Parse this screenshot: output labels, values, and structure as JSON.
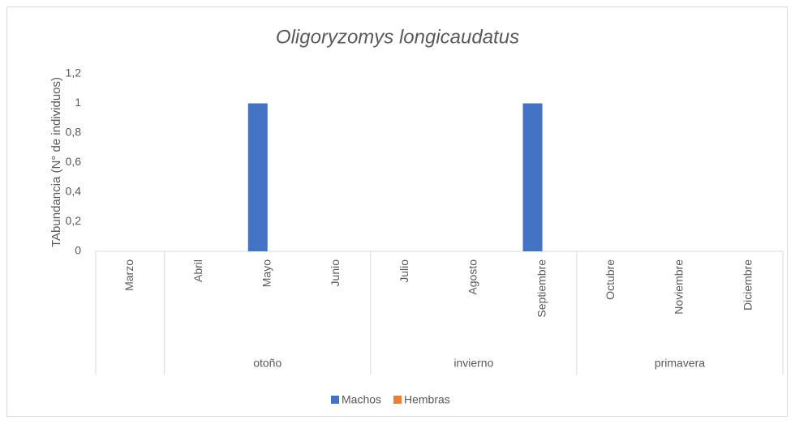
{
  "chart_data": {
    "type": "bar",
    "title": "Oligoryzomys longicaudatus",
    "ylabel": "TAbundancia (N° de individuos)",
    "categories": [
      "Marzo",
      "Abril",
      "Mayo",
      "Junio",
      "Julio",
      "Agosto",
      "Septiembre",
      "Octubre",
      "Noviembre",
      "Diciembre"
    ],
    "group_labels": [
      null,
      "otoño",
      "otoño",
      "otoño",
      "invierno",
      "invierno",
      "invierno",
      "primavera",
      "primavera",
      "primavera"
    ],
    "series": [
      {
        "name": "Machos",
        "color": "#4472c4",
        "values": [
          0,
          0,
          1,
          0,
          0,
          0,
          1,
          0,
          0,
          0
        ]
      },
      {
        "name": "Hembras",
        "color": "#ed7d31",
        "values": [
          0,
          0,
          0,
          0,
          0,
          0,
          0,
          0,
          0,
          0
        ]
      }
    ],
    "ylim": [
      0,
      1.2
    ],
    "yticks": [
      0,
      {
        "value": 0.2,
        "label": "0,2"
      },
      {
        "value": 0.4,
        "label": "0,4"
      },
      {
        "value": 0.6,
        "label": "0,6"
      },
      {
        "value": 0.8,
        "label": "0,8"
      },
      1,
      {
        "value": 1.2,
        "label": "1,2"
      }
    ],
    "grid": false,
    "legend": "bottom"
  }
}
